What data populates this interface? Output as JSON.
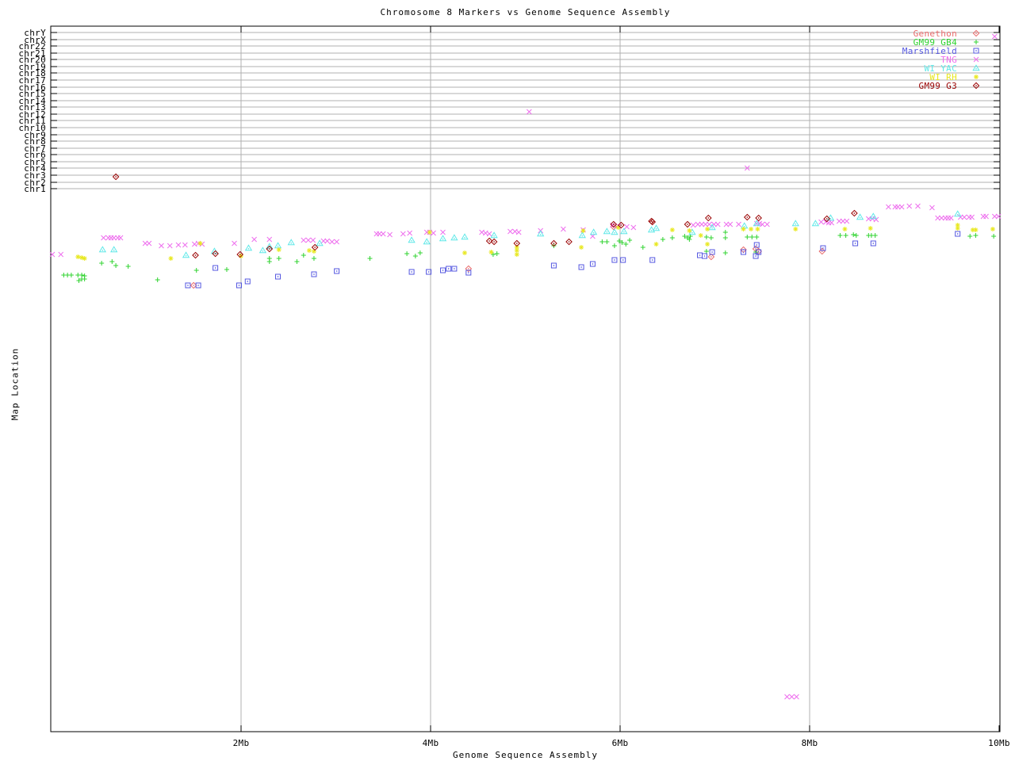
{
  "chart_data": {
    "type": "scatter",
    "title": "Chromosome 8 Markers vs Genome Sequence Assembly",
    "xlabel": "Genome Sequence Assembly",
    "ylabel": "Map Location",
    "x_ticks": [
      {
        "label": "2Mb",
        "mb": 2
      },
      {
        "label": "4Mb",
        "mb": 4
      },
      {
        "label": "6Mb",
        "mb": 6
      },
      {
        "label": "8Mb",
        "mb": 8
      },
      {
        "label": "10Mb",
        "mb": 10
      }
    ],
    "x_range_mb": [
      0,
      10.03
    ],
    "grid": true,
    "legend_position": "top-right",
    "y_categories": [
      "chrY",
      "chrX",
      "chr22",
      "chr21",
      "chr20",
      "chr19",
      "chr18",
      "chr17",
      "chr16",
      "chr15",
      "chr14",
      "chr13",
      "chr12",
      "chr11",
      "chr10",
      "chr9",
      "chr8",
      "chr7",
      "chr6",
      "chr5",
      "chr4",
      "chr3",
      "chr2",
      "chr1"
    ],
    "y_note": "chromosome rows occupy the top of the axis; remaining band is unlabeled map location (points stored as [x_Mb, y_screen_px])",
    "colors": {
      "axis": "#000000",
      "grid": "#b0b0b0",
      "background": "#ffffff"
    },
    "series": [
      {
        "name": "Genethon",
        "marker": "diamond-dot",
        "color": "#e96a6a",
        "points": [
          [
            1.5,
            360
          ],
          [
            4.4,
            339
          ],
          [
            5.93,
            286
          ],
          [
            6.96,
            324
          ],
          [
            7.3,
            315
          ],
          [
            7.43,
            314
          ],
          [
            7.46,
            317
          ],
          [
            8.13,
            317
          ]
        ]
      },
      {
        "name": "GM99 GB4",
        "marker": "plus",
        "color": "#2fd32f",
        "points": [
          [
            0.13,
            347
          ],
          [
            0.17,
            347
          ],
          [
            0.21,
            347
          ],
          [
            0.28,
            347
          ],
          [
            0.32,
            347
          ],
          [
            0.35,
            348
          ],
          [
            0.32,
            352
          ],
          [
            0.35,
            352
          ],
          [
            0.29,
            354
          ],
          [
            0.53,
            332
          ],
          [
            0.64,
            330
          ],
          [
            0.68,
            335
          ],
          [
            0.81,
            336
          ],
          [
            1.12,
            353
          ],
          [
            1.53,
            341
          ],
          [
            1.85,
            340
          ],
          [
            2.3,
            326
          ],
          [
            2.3,
            330
          ],
          [
            2.4,
            326
          ],
          [
            2.59,
            330
          ],
          [
            2.66,
            322
          ],
          [
            2.77,
            326
          ],
          [
            3.36,
            326
          ],
          [
            3.75,
            320
          ],
          [
            3.84,
            323
          ],
          [
            3.89,
            319
          ],
          [
            4.66,
            321
          ],
          [
            4.7,
            320
          ],
          [
            5.3,
            310
          ],
          [
            5.81,
            305
          ],
          [
            5.86,
            305
          ],
          [
            5.94,
            310
          ],
          [
            5.99,
            304
          ],
          [
            6.02,
            306
          ],
          [
            6.06,
            308
          ],
          [
            6.1,
            303
          ],
          [
            6.24,
            312
          ],
          [
            6.45,
            302
          ],
          [
            6.55,
            300
          ],
          [
            6.68,
            298
          ],
          [
            6.71,
            300
          ],
          [
            6.73,
            302
          ],
          [
            6.74,
            298
          ],
          [
            6.91,
            299
          ],
          [
            6.96,
            300
          ],
          [
            7.11,
            293
          ],
          [
            7.11,
            300
          ],
          [
            7.34,
            299
          ],
          [
            7.39,
            299
          ],
          [
            7.44,
            299
          ],
          [
            6.91,
            317
          ],
          [
            7.11,
            319
          ],
          [
            7.43,
            318
          ],
          [
            8.32,
            297
          ],
          [
            8.38,
            297
          ],
          [
            8.46,
            296
          ],
          [
            8.49,
            297
          ],
          [
            8.62,
            297
          ],
          [
            8.65,
            297
          ],
          [
            8.69,
            297
          ],
          [
            9.69,
            298
          ],
          [
            9.75,
            297
          ],
          [
            9.94,
            298
          ]
        ]
      },
      {
        "name": "Marshfield",
        "marker": "square-dot",
        "color": "#5457e0",
        "points": [
          [
            1.44,
            360
          ],
          [
            1.55,
            360
          ],
          [
            1.73,
            338
          ],
          [
            1.98,
            360
          ],
          [
            2.07,
            355
          ],
          [
            2.39,
            349
          ],
          [
            2.77,
            346
          ],
          [
            3.01,
            342
          ],
          [
            3.8,
            343
          ],
          [
            3.98,
            343
          ],
          [
            4.13,
            341
          ],
          [
            4.19,
            339
          ],
          [
            4.25,
            339
          ],
          [
            4.4,
            344
          ],
          [
            5.3,
            335
          ],
          [
            5.59,
            337
          ],
          [
            5.71,
            333
          ],
          [
            5.94,
            328
          ],
          [
            6.03,
            328
          ],
          [
            6.34,
            328
          ],
          [
            6.84,
            322
          ],
          [
            6.89,
            323
          ],
          [
            6.97,
            318
          ],
          [
            7.3,
            318
          ],
          [
            7.43,
            323
          ],
          [
            7.46,
            318
          ],
          [
            7.44,
            309
          ],
          [
            8.14,
            313
          ],
          [
            8.48,
            307
          ],
          [
            8.67,
            307
          ],
          [
            9.56,
            295
          ]
        ]
      },
      {
        "name": "TNG",
        "marker": "cross",
        "color": "#ee6fee",
        "points": [
          [
            0.01,
            321
          ],
          [
            0.1,
            321
          ],
          [
            0.55,
            300
          ],
          [
            0.6,
            300
          ],
          [
            0.63,
            300
          ],
          [
            0.66,
            300
          ],
          [
            0.7,
            300
          ],
          [
            0.73,
            300
          ],
          [
            0.99,
            307
          ],
          [
            1.03,
            307
          ],
          [
            1.16,
            310
          ],
          [
            1.25,
            310
          ],
          [
            1.34,
            309
          ],
          [
            1.41,
            309
          ],
          [
            1.51,
            308
          ],
          [
            1.55,
            307
          ],
          [
            1.59,
            308
          ],
          [
            1.93,
            307
          ],
          [
            2.14,
            302
          ],
          [
            2.3,
            302
          ],
          [
            2.66,
            303
          ],
          [
            2.71,
            303
          ],
          [
            2.76,
            303
          ],
          [
            2.87,
            304
          ],
          [
            2.91,
            304
          ],
          [
            2.96,
            305
          ],
          [
            3.01,
            305
          ],
          [
            3.43,
            295
          ],
          [
            3.46,
            295
          ],
          [
            3.5,
            295
          ],
          [
            3.57,
            296
          ],
          [
            3.71,
            295
          ],
          [
            3.78,
            294
          ],
          [
            3.96,
            293
          ],
          [
            3.99,
            293
          ],
          [
            4.03,
            294
          ],
          [
            4.13,
            293
          ],
          [
            4.54,
            293
          ],
          [
            4.58,
            294
          ],
          [
            4.62,
            295
          ],
          [
            4.84,
            292
          ],
          [
            4.89,
            292
          ],
          [
            4.93,
            293
          ],
          [
            5.16,
            291
          ],
          [
            5.4,
            289
          ],
          [
            5.61,
            290
          ],
          [
            5.71,
            298
          ],
          [
            5.92,
            284
          ],
          [
            5.98,
            285
          ],
          [
            6.07,
            286
          ],
          [
            6.14,
            287
          ],
          [
            6.77,
            284
          ],
          [
            6.82,
            283
          ],
          [
            6.86,
            283
          ],
          [
            6.9,
            283
          ],
          [
            6.94,
            283
          ],
          [
            6.99,
            283
          ],
          [
            7.03,
            283
          ],
          [
            7.12,
            283
          ],
          [
            7.16,
            283
          ],
          [
            7.25,
            283
          ],
          [
            7.44,
            282
          ],
          [
            7.47,
            282
          ],
          [
            7.5,
            283
          ],
          [
            7.55,
            283
          ],
          [
            8.12,
            280
          ],
          [
            8.17,
            280
          ],
          [
            8.2,
            281
          ],
          [
            8.23,
            281
          ],
          [
            8.31,
            279
          ],
          [
            8.35,
            279
          ],
          [
            8.39,
            279
          ],
          [
            8.62,
            276
          ],
          [
            8.66,
            276
          ],
          [
            8.7,
            277
          ],
          [
            8.83,
            261
          ],
          [
            8.9,
            261
          ],
          [
            8.93,
            261
          ],
          [
            8.97,
            261
          ],
          [
            9.05,
            260
          ],
          [
            9.14,
            260
          ],
          [
            9.29,
            262
          ],
          [
            9.35,
            275
          ],
          [
            9.39,
            275
          ],
          [
            9.43,
            275
          ],
          [
            9.46,
            275
          ],
          [
            9.49,
            275
          ],
          [
            9.59,
            274
          ],
          [
            9.63,
            274
          ],
          [
            9.68,
            274
          ],
          [
            9.71,
            274
          ],
          [
            9.83,
            273
          ],
          [
            9.86,
            273
          ],
          [
            9.95,
            273
          ],
          [
            9.99,
            273
          ],
          [
            5.04,
            141
          ],
          [
            7.34,
            212
          ],
          [
            9.95,
            46
          ],
          [
            7.76,
            879
          ],
          [
            7.81,
            879
          ],
          [
            7.86,
            879
          ]
        ]
      },
      {
        "name": "WI YAC",
        "marker": "triangle-dot",
        "color": "#5fe8e8",
        "points": [
          [
            0.54,
            315
          ],
          [
            0.66,
            315
          ],
          [
            1.42,
            322
          ],
          [
            1.72,
            317
          ],
          [
            2.08,
            313
          ],
          [
            2.23,
            316
          ],
          [
            2.3,
            311
          ],
          [
            2.39,
            310
          ],
          [
            2.53,
            306
          ],
          [
            2.83,
            307
          ],
          [
            3.8,
            303
          ],
          [
            3.96,
            305
          ],
          [
            4.13,
            301
          ],
          [
            4.25,
            300
          ],
          [
            4.36,
            299
          ],
          [
            4.67,
            297
          ],
          [
            5.16,
            295
          ],
          [
            5.6,
            297
          ],
          [
            5.72,
            293
          ],
          [
            5.86,
            292
          ],
          [
            5.94,
            293
          ],
          [
            6.04,
            292
          ],
          [
            6.33,
            290
          ],
          [
            6.38,
            288
          ],
          [
            6.76,
            293
          ],
          [
            6.97,
            287
          ],
          [
            7.31,
            285
          ],
          [
            7.44,
            282
          ],
          [
            7.85,
            282
          ],
          [
            8.06,
            282
          ],
          [
            8.22,
            275
          ],
          [
            8.53,
            274
          ],
          [
            8.67,
            273
          ],
          [
            9.56,
            270
          ]
        ]
      },
      {
        "name": "WI RH",
        "marker": "asterisk",
        "color": "#e8e820",
        "points": [
          [
            0.28,
            324
          ],
          [
            0.32,
            325
          ],
          [
            0.35,
            326
          ],
          [
            1.26,
            326
          ],
          [
            1.57,
            307
          ],
          [
            2.0,
            323
          ],
          [
            2.4,
            315
          ],
          [
            2.72,
            316
          ],
          [
            2.77,
            317
          ],
          [
            3.99,
            293
          ],
          [
            4.36,
            319
          ],
          [
            4.64,
            318
          ],
          [
            4.91,
            312
          ],
          [
            4.91,
            316
          ],
          [
            4.91,
            321
          ],
          [
            5.61,
            291
          ],
          [
            5.59,
            312
          ],
          [
            5.98,
            287
          ],
          [
            6.38,
            308
          ],
          [
            6.55,
            290
          ],
          [
            6.73,
            291
          ],
          [
            6.85,
            297
          ],
          [
            6.92,
            289
          ],
          [
            6.92,
            308
          ],
          [
            7.3,
            289
          ],
          [
            7.38,
            289
          ],
          [
            7.45,
            289
          ],
          [
            7.85,
            289
          ],
          [
            8.37,
            289
          ],
          [
            8.64,
            288
          ],
          [
            9.56,
            284
          ],
          [
            9.56,
            288
          ],
          [
            9.72,
            290
          ],
          [
            9.75,
            290
          ],
          [
            9.93,
            289
          ]
        ]
      },
      {
        "name": "GM99 G3",
        "marker": "diamond-dot",
        "color": "#990000",
        "points": [
          [
            0.68,
            223
          ],
          [
            1.52,
            322
          ],
          [
            1.73,
            320
          ],
          [
            1.99,
            321
          ],
          [
            2.3,
            314
          ],
          [
            2.78,
            312
          ],
          [
            4.62,
            304
          ],
          [
            4.67,
            305
          ],
          [
            4.91,
            307
          ],
          [
            5.3,
            307
          ],
          [
            5.46,
            305
          ],
          [
            5.93,
            283
          ],
          [
            6.01,
            284
          ],
          [
            6.33,
            279
          ],
          [
            6.34,
            280
          ],
          [
            6.71,
            283
          ],
          [
            6.93,
            275
          ],
          [
            7.34,
            274
          ],
          [
            7.46,
            275
          ],
          [
            8.18,
            276
          ],
          [
            8.47,
            269
          ]
        ]
      }
    ]
  }
}
